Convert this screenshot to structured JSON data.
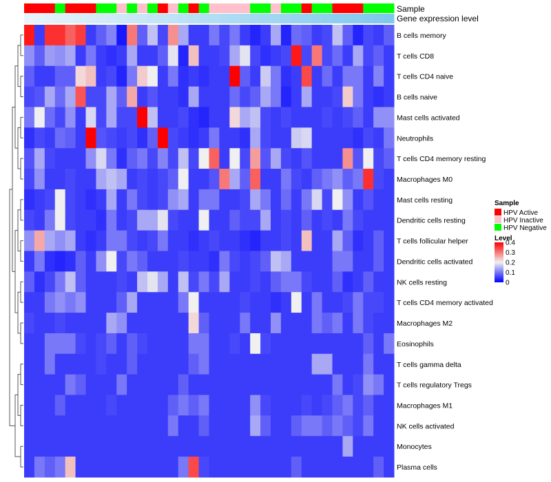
{
  "chart_data": {
    "type": "heatmap",
    "title": "",
    "annotation_tracks": [
      {
        "label": "Sample",
        "kind": "categorical",
        "levels": [
          "HPV Active",
          "HPV Inactive",
          "HPV Negative"
        ],
        "values": [
          "HPV Active",
          "HPV Active",
          "HPV Active",
          "HPV Negative",
          "HPV Active",
          "HPV Active",
          "HPV Active",
          "HPV Negative",
          "HPV Negative",
          "HPV Inactive",
          "HPV Negative",
          "HPV Inactive",
          "HPV Negative",
          "HPV Active",
          "HPV Inactive",
          "HPV Negative",
          "HPV Active",
          "HPV Negative",
          "HPV Inactive",
          "HPV Inactive",
          "HPV Inactive",
          "HPV Inactive",
          "HPV Negative",
          "HPV Negative",
          "HPV Inactive",
          "HPV Negative",
          "HPV Negative",
          "HPV Active",
          "HPV Negative",
          "HPV Negative",
          "HPV Active",
          "HPV Active",
          "HPV Active",
          "HPV Negative",
          "HPV Negative",
          "HPV Negative"
        ]
      },
      {
        "label": "Gene expression level",
        "kind": "continuous",
        "values": [
          0.0,
          0.03,
          0.06,
          0.09,
          0.11,
          0.14,
          0.17,
          0.2,
          0.23,
          0.26,
          0.29,
          0.31,
          0.34,
          0.37,
          0.4,
          0.43,
          0.46,
          0.49,
          0.51,
          0.54,
          0.57,
          0.6,
          0.63,
          0.66,
          0.69,
          0.71,
          0.74,
          0.77,
          0.8,
          0.83,
          0.86,
          0.89,
          0.91,
          0.94,
          0.97,
          1.0
        ]
      }
    ],
    "rows": [
      "B cells memory",
      "T cells CD8",
      "T cells CD4 naive",
      "B cells naive",
      "Mast cells activated",
      "Neutrophils",
      "T cells CD4 memory resting",
      "Macrophages M0",
      "Mast cells resting",
      "Dendritic cells resting",
      "T cells follicular helper",
      "Dendritic cells activated",
      "NK cells resting",
      "T cells CD4 memory activated",
      "Macrophages M2",
      "Eosinophils",
      "T cells gamma delta",
      "T cells regulatory  Tregs",
      "Macrophages M1",
      "NK cells activated",
      "Monocytes",
      "Plasma cells"
    ],
    "values": [
      [
        0.38,
        0.05,
        0.36,
        0.36,
        0.32,
        0.35,
        0.05,
        0.08,
        0.11,
        0.02,
        0.3,
        0.08,
        0.16,
        0.06,
        0.28,
        0.14,
        0.05,
        0.05,
        0.1,
        0.06,
        0.1,
        0.05,
        0.03,
        0.05,
        0.14,
        0.03,
        0.09,
        0.08,
        0.05,
        0.06,
        0.16,
        0.08,
        0.03,
        0.06,
        0.05,
        0.08
      ],
      [
        0.12,
        0.08,
        0.13,
        0.12,
        0.14,
        0.05,
        0.1,
        0.05,
        0.04,
        0.05,
        0.14,
        0.05,
        0.05,
        0.08,
        0.19,
        0.03,
        0.24,
        0.05,
        0.05,
        0.06,
        0.14,
        0.19,
        0.06,
        0.04,
        0.05,
        0.06,
        0.38,
        0.06,
        0.3,
        0.06,
        0.09,
        0.05,
        0.14,
        0.06,
        0.08,
        0.05
      ],
      [
        0.08,
        0.05,
        0.05,
        0.08,
        0.08,
        0.22,
        0.24,
        0.05,
        0.06,
        0.03,
        0.1,
        0.23,
        0.2,
        0.05,
        0.1,
        0.04,
        0.05,
        0.04,
        0.05,
        0.05,
        0.4,
        0.08,
        0.05,
        0.17,
        0.1,
        0.04,
        0.05,
        0.34,
        0.05,
        0.09,
        0.05,
        0.1,
        0.1,
        0.05,
        0.11,
        0.05
      ],
      [
        0.06,
        0.07,
        0.14,
        0.09,
        0.14,
        0.33,
        0.06,
        0.06,
        0.14,
        0.08,
        0.26,
        0.05,
        0.07,
        0.05,
        0.05,
        0.04,
        0.14,
        0.05,
        0.05,
        0.05,
        0.09,
        0.06,
        0.08,
        0.14,
        0.1,
        0.03,
        0.05,
        0.14,
        0.05,
        0.05,
        0.06,
        0.23,
        0.1,
        0.05,
        0.04,
        0.05
      ],
      [
        0.1,
        0.2,
        0.09,
        0.06,
        0.12,
        0.05,
        0.18,
        0.06,
        0.14,
        0.06,
        0.06,
        0.4,
        0.16,
        0.05,
        0.05,
        0.06,
        0.04,
        0.03,
        0.05,
        0.05,
        0.22,
        0.14,
        0.16,
        0.06,
        0.05,
        0.06,
        0.05,
        0.05,
        0.05,
        0.06,
        0.05,
        0.06,
        0.08,
        0.05,
        0.12,
        0.12
      ],
      [
        0.04,
        0.06,
        0.05,
        0.09,
        0.08,
        0.05,
        0.4,
        0.07,
        0.06,
        0.05,
        0.06,
        0.04,
        0.08,
        0.4,
        0.06,
        0.05,
        0.04,
        0.05,
        0.1,
        0.05,
        0.05,
        0.04,
        0.14,
        0.06,
        0.05,
        0.05,
        0.17,
        0.18,
        0.05,
        0.05,
        0.05,
        0.05,
        0.04,
        0.06,
        0.05,
        0.1
      ],
      [
        0.07,
        0.14,
        0.06,
        0.05,
        0.05,
        0.05,
        0.12,
        0.18,
        0.1,
        0.04,
        0.08,
        0.1,
        0.06,
        0.11,
        0.06,
        0.16,
        0.06,
        0.2,
        0.32,
        0.05,
        0.2,
        0.06,
        0.27,
        0.07,
        0.14,
        0.06,
        0.05,
        0.07,
        0.05,
        0.05,
        0.05,
        0.28,
        0.07,
        0.2,
        0.06,
        0.08
      ],
      [
        0.06,
        0.12,
        0.05,
        0.05,
        0.06,
        0.05,
        0.05,
        0.14,
        0.16,
        0.14,
        0.05,
        0.06,
        0.05,
        0.06,
        0.08,
        0.2,
        0.05,
        0.05,
        0.07,
        0.3,
        0.14,
        0.08,
        0.32,
        0.05,
        0.05,
        0.1,
        0.06,
        0.05,
        0.08,
        0.1,
        0.12,
        0.08,
        0.1,
        0.36,
        0.06,
        0.05
      ],
      [
        0.04,
        0.05,
        0.06,
        0.2,
        0.06,
        0.05,
        0.04,
        0.05,
        0.14,
        0.05,
        0.1,
        0.06,
        0.05,
        0.06,
        0.12,
        0.14,
        0.05,
        0.1,
        0.1,
        0.05,
        0.05,
        0.06,
        0.14,
        0.1,
        0.05,
        0.09,
        0.05,
        0.1,
        0.18,
        0.06,
        0.2,
        0.12,
        0.05,
        0.07,
        0.05,
        0.05
      ],
      [
        0.06,
        0.05,
        0.1,
        0.2,
        0.06,
        0.05,
        0.05,
        0.04,
        0.1,
        0.05,
        0.06,
        0.14,
        0.14,
        0.19,
        0.06,
        0.05,
        0.05,
        0.2,
        0.05,
        0.05,
        0.08,
        0.06,
        0.06,
        0.14,
        0.05,
        0.06,
        0.05,
        0.08,
        0.05,
        0.06,
        0.05,
        0.1,
        0.06,
        0.05,
        0.05,
        0.05
      ],
      [
        0.12,
        0.26,
        0.14,
        0.12,
        0.14,
        0.05,
        0.04,
        0.05,
        0.1,
        0.1,
        0.06,
        0.05,
        0.06,
        0.1,
        0.05,
        0.05,
        0.04,
        0.05,
        0.06,
        0.05,
        0.05,
        0.04,
        0.03,
        0.05,
        0.05,
        0.06,
        0.05,
        0.24,
        0.05,
        0.05,
        0.14,
        0.08,
        0.04,
        0.05,
        0.08,
        0.05
      ],
      [
        0.05,
        0.1,
        0.04,
        0.03,
        0.04,
        0.08,
        0.05,
        0.12,
        0.2,
        0.06,
        0.1,
        0.08,
        0.05,
        0.05,
        0.05,
        0.06,
        0.05,
        0.05,
        0.04,
        0.1,
        0.06,
        0.05,
        0.06,
        0.08,
        0.16,
        0.14,
        0.05,
        0.05,
        0.05,
        0.05,
        0.1,
        0.1,
        0.05,
        0.05,
        0.08,
        0.05
      ],
      [
        0.08,
        0.04,
        0.06,
        0.1,
        0.16,
        0.08,
        0.05,
        0.05,
        0.05,
        0.06,
        0.05,
        0.16,
        0.19,
        0.14,
        0.05,
        0.16,
        0.06,
        0.1,
        0.06,
        0.14,
        0.05,
        0.05,
        0.06,
        0.05,
        0.08,
        0.1,
        0.1,
        0.06,
        0.05,
        0.05,
        0.08,
        0.04,
        0.05,
        0.08,
        0.05,
        0.05
      ],
      [
        0.05,
        0.05,
        0.1,
        0.12,
        0.1,
        0.12,
        0.05,
        0.05,
        0.05,
        0.08,
        0.14,
        0.05,
        0.05,
        0.05,
        0.05,
        0.1,
        0.2,
        0.05,
        0.05,
        0.05,
        0.05,
        0.06,
        0.05,
        0.05,
        0.04,
        0.05,
        0.2,
        0.05,
        0.1,
        0.05,
        0.05,
        0.06,
        0.1,
        0.06,
        0.06,
        0.05
      ],
      [
        0.06,
        0.05,
        0.05,
        0.06,
        0.05,
        0.05,
        0.05,
        0.05,
        0.14,
        0.12,
        0.05,
        0.05,
        0.05,
        0.05,
        0.05,
        0.05,
        0.22,
        0.08,
        0.05,
        0.05,
        0.05,
        0.1,
        0.05,
        0.05,
        0.12,
        0.05,
        0.05,
        0.05,
        0.1,
        0.08,
        0.1,
        0.05,
        0.1,
        0.06,
        0.05,
        0.05
      ],
      [
        0.05,
        0.05,
        0.1,
        0.1,
        0.1,
        0.06,
        0.05,
        0.06,
        0.08,
        0.05,
        0.08,
        0.06,
        0.05,
        0.05,
        0.05,
        0.05,
        0.1,
        0.1,
        0.05,
        0.05,
        0.06,
        0.05,
        0.2,
        0.06,
        0.05,
        0.05,
        0.05,
        0.05,
        0.05,
        0.05,
        0.05,
        0.05,
        0.05,
        0.08,
        0.05,
        0.1
      ],
      [
        0.05,
        0.05,
        0.1,
        0.05,
        0.05,
        0.05,
        0.05,
        0.06,
        0.05,
        0.05,
        0.08,
        0.05,
        0.05,
        0.05,
        0.05,
        0.05,
        0.08,
        0.1,
        0.05,
        0.05,
        0.05,
        0.05,
        0.05,
        0.05,
        0.05,
        0.05,
        0.05,
        0.05,
        0.14,
        0.14,
        0.05,
        0.05,
        0.05,
        0.1,
        0.05,
        0.05
      ],
      [
        0.05,
        0.05,
        0.05,
        0.05,
        0.1,
        0.08,
        0.05,
        0.05,
        0.05,
        0.1,
        0.05,
        0.05,
        0.05,
        0.05,
        0.05,
        0.08,
        0.05,
        0.05,
        0.05,
        0.05,
        0.05,
        0.05,
        0.05,
        0.05,
        0.05,
        0.05,
        0.05,
        0.05,
        0.05,
        0.05,
        0.1,
        0.05,
        0.06,
        0.12,
        0.1,
        0.05
      ],
      [
        0.05,
        0.05,
        0.05,
        0.08,
        0.05,
        0.05,
        0.05,
        0.05,
        0.06,
        0.05,
        0.05,
        0.05,
        0.05,
        0.05,
        0.08,
        0.1,
        0.08,
        0.1,
        0.05,
        0.05,
        0.05,
        0.05,
        0.12,
        0.06,
        0.05,
        0.05,
        0.05,
        0.06,
        0.05,
        0.06,
        0.08,
        0.1,
        0.06,
        0.08,
        0.05,
        0.05
      ],
      [
        0.05,
        0.05,
        0.05,
        0.05,
        0.05,
        0.05,
        0.05,
        0.05,
        0.05,
        0.05,
        0.05,
        0.05,
        0.05,
        0.05,
        0.1,
        0.05,
        0.05,
        0.08,
        0.05,
        0.05,
        0.05,
        0.05,
        0.14,
        0.08,
        0.05,
        0.05,
        0.08,
        0.1,
        0.1,
        0.08,
        0.1,
        0.08,
        0.06,
        0.1,
        0.05,
        0.05
      ],
      [
        0.05,
        0.05,
        0.05,
        0.05,
        0.05,
        0.05,
        0.05,
        0.05,
        0.05,
        0.05,
        0.05,
        0.05,
        0.05,
        0.05,
        0.05,
        0.05,
        0.05,
        0.05,
        0.05,
        0.05,
        0.05,
        0.05,
        0.05,
        0.05,
        0.05,
        0.05,
        0.05,
        0.05,
        0.05,
        0.05,
        0.05,
        0.14,
        0.05,
        0.05,
        0.05,
        0.05
      ],
      [
        0.05,
        0.1,
        0.08,
        0.1,
        0.24,
        0.05,
        0.05,
        0.05,
        0.05,
        0.05,
        0.05,
        0.05,
        0.05,
        0.05,
        0.05,
        0.1,
        0.34,
        0.06,
        0.05,
        0.05,
        0.05,
        0.05,
        0.05,
        0.05,
        0.05,
        0.05,
        0.08,
        0.05,
        0.05,
        0.05,
        0.05,
        0.05,
        0.05,
        0.05,
        0.08,
        0.05
      ]
    ],
    "color_scale": {
      "title": "Level",
      "range": [
        0,
        0.4
      ],
      "ticks": [
        "0.4",
        "0.3",
        "0.2",
        "0.1",
        "0"
      ],
      "tick_values": [
        0.4,
        0.3,
        0.2,
        0.1,
        0
      ],
      "stops": [
        {
          "value": 0.0,
          "color": "#0000ff"
        },
        {
          "value": 0.2,
          "color": "#f0f0f0"
        },
        {
          "value": 0.4,
          "color": "#ff0000"
        }
      ]
    },
    "legend": {
      "title": "Sample",
      "placement": "right",
      "entries": [
        {
          "label": "HPV Active",
          "color": "#ff0000"
        },
        {
          "label": "HPV Inactive",
          "color": "#ffc0cb"
        },
        {
          "label": "HPV Negative",
          "color": "#00ff00"
        }
      ]
    },
    "gene_expression_colors": {
      "low": "#e8f4fb",
      "high": "#7ec8ee"
    },
    "dendrogram": "rows"
  }
}
